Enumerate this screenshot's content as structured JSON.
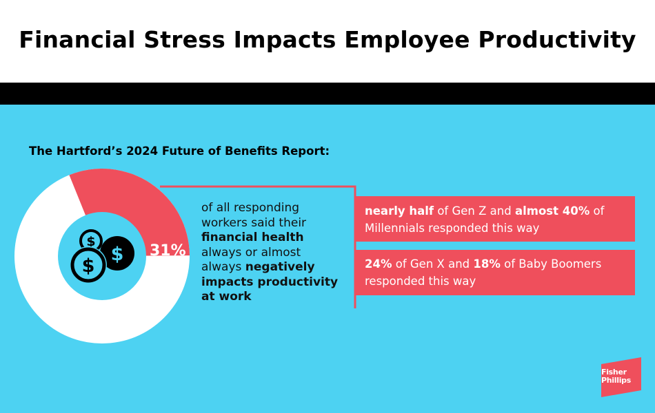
{
  "header": {
    "title": "Financial Stress Impacts Employee Productivity"
  },
  "report": {
    "subtitle": "The Hartford’s 2024 Future of Benefits Report:",
    "donut": {
      "percent_value": 31,
      "percent_label": "31%",
      "highlight_color": "#ef4f5c",
      "base_color": "#ffffff",
      "center_color": "#4dd2f2",
      "icon": "dollar-coins-icon"
    },
    "statement": {
      "part1": "of all responding workers said their ",
      "bold1": "financial health",
      "part2": " always or almost always ",
      "bold2": "negatively impacts productivity at work"
    },
    "callouts": [
      {
        "bold_a": "nearly half",
        "text_a": " of Gen Z and ",
        "bold_b": "almost 40%",
        "text_b": " of Millennials responded this way"
      },
      {
        "bold_a": "24%",
        "text_a": " of Gen X and ",
        "bold_b": "18%",
        "text_b": " of Baby Boomers responded this way"
      }
    ]
  },
  "brand": {
    "logo_line1": "Fisher",
    "logo_line2": "Phillips",
    "logo_color": "#ef4f5c"
  },
  "colors": {
    "background": "#4dd2f2",
    "accent": "#ef4f5c",
    "band": "#000000"
  }
}
